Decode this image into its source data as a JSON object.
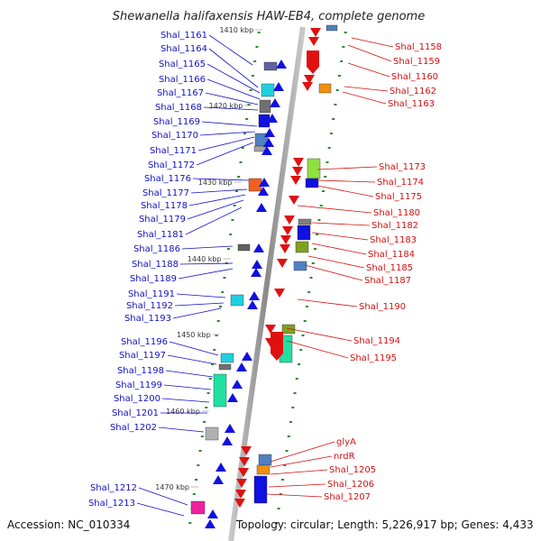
{
  "title": "Shewanella halifaxensis HAW-EB4, complete genome",
  "footer": {
    "accession": "Accession: NC_010334",
    "topology": "Topology: circular; Length: 5,226,917 bp; Genes: 4,433"
  },
  "kbp_labels": [
    "1410 kbp",
    "1420 kbp",
    "1430 kbp",
    "1440 kbp",
    "1450 kbp",
    "1460 kbp",
    "1470 kbp"
  ],
  "left_labels": [
    "Shal_1161",
    "Shal_1164",
    "Shal_1165",
    "Shal_1166",
    "Shal_1167",
    "Shal_1168",
    "Shal_1169",
    "Shal_1170",
    "Shal_1171",
    "Shal_1172",
    "Shal_1176",
    "Shal_1177",
    "Shal_1178",
    "Shal_1179",
    "Shal_1181",
    "Shal_1186",
    "Shal_1188",
    "Shal_1189",
    "Shal_1191",
    "Shal_1192",
    "Shal_1193",
    "Shal_1196",
    "Shal_1197",
    "Shal_1198",
    "Shal_1199",
    "Shal_1200",
    "Shal_1201",
    "Shal_1202",
    "Shal_1212",
    "Shal_1213"
  ],
  "right_labels": [
    "Shal_1158",
    "Shal_1159",
    "Shal_1160",
    "Shal_1162",
    "Shal_1163",
    "Shal_1173",
    "Shal_1174",
    "Shal_1175",
    "Shal_1180",
    "Shal_1182",
    "Shal_1183",
    "Shal_1184",
    "Shal_1185",
    "Shal_1187",
    "Shal_1190",
    "Shal_1194",
    "Shal_1195",
    "glyA",
    "nrdR",
    "Shal_1205",
    "Shal_1206",
    "Shal_1207"
  ],
  "colors": {
    "forward_strand": "#1010e0",
    "reverse_strand": "#e01010",
    "left_label": "#1010c8",
    "right_label": "#d41010",
    "backbone": "#9a9a9a",
    "tick_dot": "#2a8a2a"
  }
}
